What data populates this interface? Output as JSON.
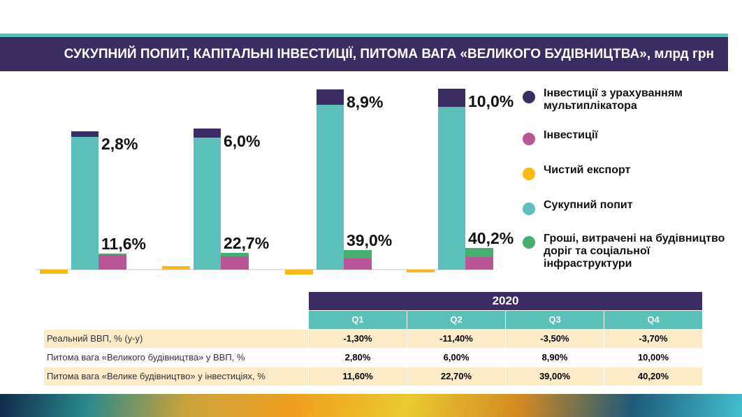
{
  "title": "СУКУПНИЙ ПОПИТ, КАПІТАЛЬНІ ІНВЕСТИЦІЇ, ПИТОМА ВАГА «ВЕЛИКОГО БУДІВНИЦТВА», млрд грн",
  "chart_data": {
    "type": "bar",
    "categories": [
      "Q1",
      "Q2",
      "Q3",
      "Q4"
    ],
    "series": [
      {
        "name": "Чистий експорт",
        "color": "#f9b915",
        "values": [
          -6,
          5,
          -7,
          -4
        ]
      },
      {
        "name": "Сукупний попит",
        "color": "#5bbfba",
        "values": [
          190,
          189,
          236,
          233
        ]
      },
      {
        "name": "Інвестиції з урахуванням мультиплікатора",
        "color": "#3b2d63",
        "values": [
          8,
          13,
          22,
          26
        ]
      },
      {
        "name": "Інвестиції",
        "color": "#bb5599",
        "values": [
          21,
          19,
          16,
          18
        ]
      },
      {
        "name": "Гроші, витрачені на будівництво доріг та соціальної інфраструктури",
        "color": "#45b06e",
        "values": [
          2,
          5,
          12,
          13
        ]
      }
    ],
    "labels_top": [
      "2,8%",
      "6,0%",
      "8,9%",
      "10,0%"
    ],
    "labels_bottom": [
      "11,6%",
      "22,7%",
      "39,0%",
      "40,2%"
    ],
    "axes_visible": false,
    "grid": false,
    "legend": "right"
  },
  "legend": [
    {
      "color": "#3b2d63",
      "label": "Інвестиції з урахуванням мультиплікатора"
    },
    {
      "color": "#bb5599",
      "label": "Інвестиції"
    },
    {
      "color": "#f9b915",
      "label": "Чистий експорт"
    },
    {
      "color": "#5bbfba",
      "label": "Сукупний попит"
    },
    {
      "color": "#45b06e",
      "label": "Гроші, витрачені на будівництво доріг та соціальної інфраструктури"
    }
  ],
  "table": {
    "year": "2020",
    "quarters": [
      "Q1",
      "Q2",
      "Q3",
      "Q4"
    ],
    "rows": [
      {
        "label": "Реальний ВВП, % (y-y)",
        "values": [
          "-1,30%",
          "-11,40%",
          "-3,50%",
          "-3,70%"
        ]
      },
      {
        "label": "Питома вага «Великого будівництва» у ВВП, %",
        "values": [
          "2,80%",
          "6,00%",
          "8,90%",
          "10,00%"
        ]
      },
      {
        "label": "Питома вага «Велике будівництво» у інвестиціях, %",
        "values": [
          "11,60%",
          "22,70%",
          "39,00%",
          "40,20%"
        ]
      }
    ]
  }
}
